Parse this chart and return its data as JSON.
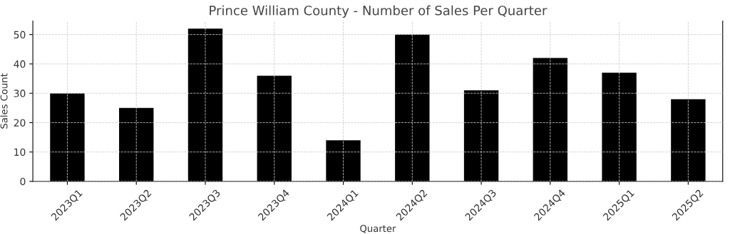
{
  "chart_data": {
    "type": "bar",
    "title": "Prince William County - Number of Sales Per Quarter",
    "xlabel": "Quarter",
    "ylabel": "Sales Count",
    "categories": [
      "2023Q1",
      "2023Q2",
      "2023Q3",
      "2023Q4",
      "2024Q1",
      "2024Q2",
      "2024Q3",
      "2024Q4",
      "2025Q1",
      "2025Q2"
    ],
    "values": [
      30,
      25,
      52,
      36,
      14,
      50,
      31,
      42,
      37,
      28
    ],
    "color": "#000000",
    "ylim": [
      0,
      54.6
    ],
    "yticks": [
      0,
      10,
      20,
      30,
      40,
      50
    ],
    "grid": true
  }
}
